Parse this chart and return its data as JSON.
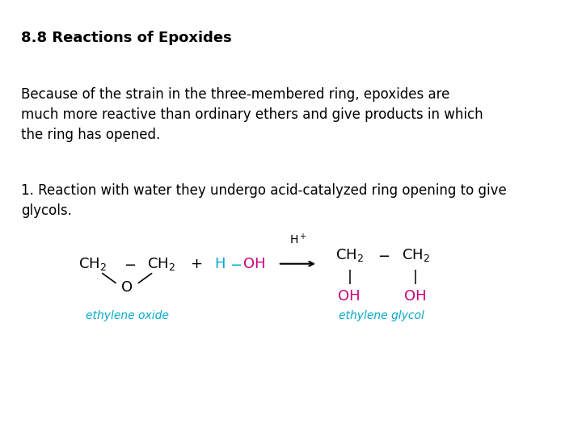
{
  "title": "8.8 Reactions of Epoxides",
  "title_bold": true,
  "title_fontsize": 13,
  "body_text_1": "Because of the strain in the three-membered ring, epoxides are\nmuch more reactive than ordinary ethers and give products in which\nthe ring has opened.",
  "body_text_2": "1. Reaction with water they undergo acid-catalyzed ring opening to give\nglycols.",
  "body_fontsize": 12,
  "background_color": "#ffffff",
  "text_color": "#000000",
  "cyan_color": "#00AACC",
  "magenta_color": "#CC0077",
  "label_ethylene_oxide": "ethylene oxide",
  "label_ethylene_glycol": "ethylene glycol",
  "label_color": "#00AACC"
}
